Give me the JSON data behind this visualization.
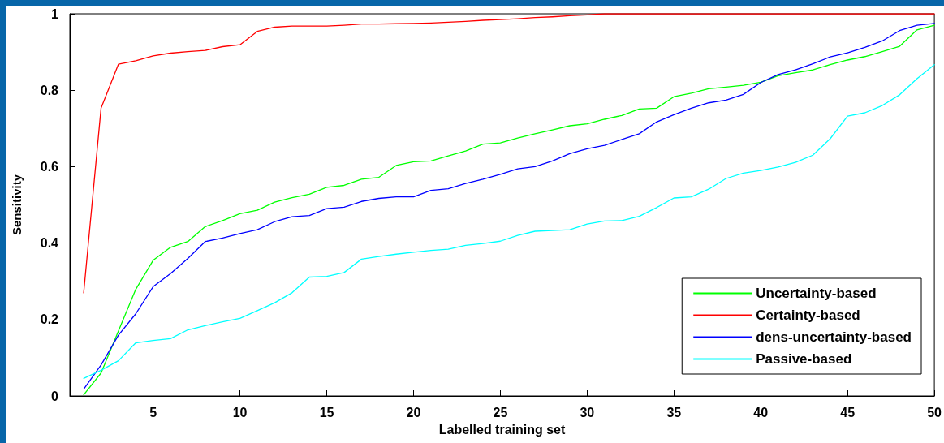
{
  "chart_data": {
    "type": "line",
    "xlabel": "Labelled training set",
    "ylabel": "Sensitivity",
    "x": [
      1,
      2,
      3,
      4,
      5,
      6,
      7,
      8,
      9,
      10,
      11,
      12,
      13,
      14,
      15,
      16,
      17,
      18,
      19,
      20,
      21,
      22,
      23,
      24,
      25,
      26,
      27,
      28,
      29,
      30,
      31,
      32,
      33,
      34,
      35,
      36,
      37,
      38,
      39,
      40,
      41,
      42,
      43,
      44,
      45,
      46,
      47,
      48,
      49,
      50
    ],
    "series": [
      {
        "name": "Uncertainty-based",
        "color": "#00ff00",
        "values": [
          0.003,
          0.06,
          0.17,
          0.279,
          0.355,
          0.389,
          0.404,
          0.443,
          0.459,
          0.477,
          0.486,
          0.507,
          0.519,
          0.528,
          0.546,
          0.551,
          0.567,
          0.572,
          0.603,
          0.613,
          0.615,
          0.628,
          0.641,
          0.659,
          0.662,
          0.675,
          0.686,
          0.696,
          0.707,
          0.712,
          0.724,
          0.734,
          0.751,
          0.753,
          0.783,
          0.792,
          0.804,
          0.808,
          0.813,
          0.821,
          0.838,
          0.846,
          0.853,
          0.867,
          0.879,
          0.888,
          0.901,
          0.915,
          0.958,
          0.97
        ]
      },
      {
        "name": "Certainty-based",
        "color": "#ff0000",
        "values": [
          0.27,
          0.753,
          0.868,
          0.877,
          0.89,
          0.897,
          0.901,
          0.904,
          0.914,
          0.919,
          0.954,
          0.965,
          0.968,
          0.968,
          0.968,
          0.97,
          0.973,
          0.973,
          0.974,
          0.975,
          0.976,
          0.978,
          0.98,
          0.983,
          0.985,
          0.987,
          0.99,
          0.992,
          0.995,
          0.997,
          1,
          1,
          1,
          1,
          1,
          1,
          1,
          1,
          1,
          1,
          1,
          1,
          1,
          1,
          1,
          1,
          1,
          1,
          1,
          1
        ]
      },
      {
        "name": "dens-uncertainty-based",
        "color": "#0000ff",
        "values": [
          0.018,
          0.081,
          0.159,
          0.215,
          0.286,
          0.32,
          0.36,
          0.404,
          0.413,
          0.425,
          0.435,
          0.456,
          0.469,
          0.472,
          0.49,
          0.494,
          0.509,
          0.517,
          0.521,
          0.521,
          0.538,
          0.542,
          0.556,
          0.567,
          0.58,
          0.594,
          0.6,
          0.615,
          0.634,
          0.647,
          0.656,
          0.671,
          0.686,
          0.717,
          0.736,
          0.753,
          0.767,
          0.774,
          0.789,
          0.82,
          0.841,
          0.853,
          0.869,
          0.887,
          0.898,
          0.912,
          0.929,
          0.956,
          0.97,
          0.975
        ]
      },
      {
        "name": "Passive-based",
        "color": "#00ffff",
        "values": [
          0.046,
          0.067,
          0.092,
          0.139,
          0.145,
          0.15,
          0.173,
          0.184,
          0.194,
          0.203,
          0.223,
          0.244,
          0.27,
          0.311,
          0.313,
          0.323,
          0.358,
          0.365,
          0.371,
          0.376,
          0.381,
          0.384,
          0.394,
          0.399,
          0.405,
          0.42,
          0.431,
          0.433,
          0.435,
          0.45,
          0.458,
          0.459,
          0.47,
          0.493,
          0.518,
          0.521,
          0.541,
          0.569,
          0.583,
          0.59,
          0.599,
          0.611,
          0.63,
          0.673,
          0.732,
          0.741,
          0.76,
          0.788,
          0.83,
          0.867
        ]
      }
    ],
    "xlim": [
      0.2,
      50
    ],
    "xticks": [
      5,
      10,
      15,
      20,
      25,
      30,
      35,
      40,
      45,
      50
    ],
    "ylim": [
      0,
      1
    ],
    "yticks": [
      0,
      0.2,
      0.4,
      0.6,
      0.8,
      1
    ],
    "grid": false,
    "legend": "bottom right",
    "marker": "none",
    "line_style": "solid"
  }
}
